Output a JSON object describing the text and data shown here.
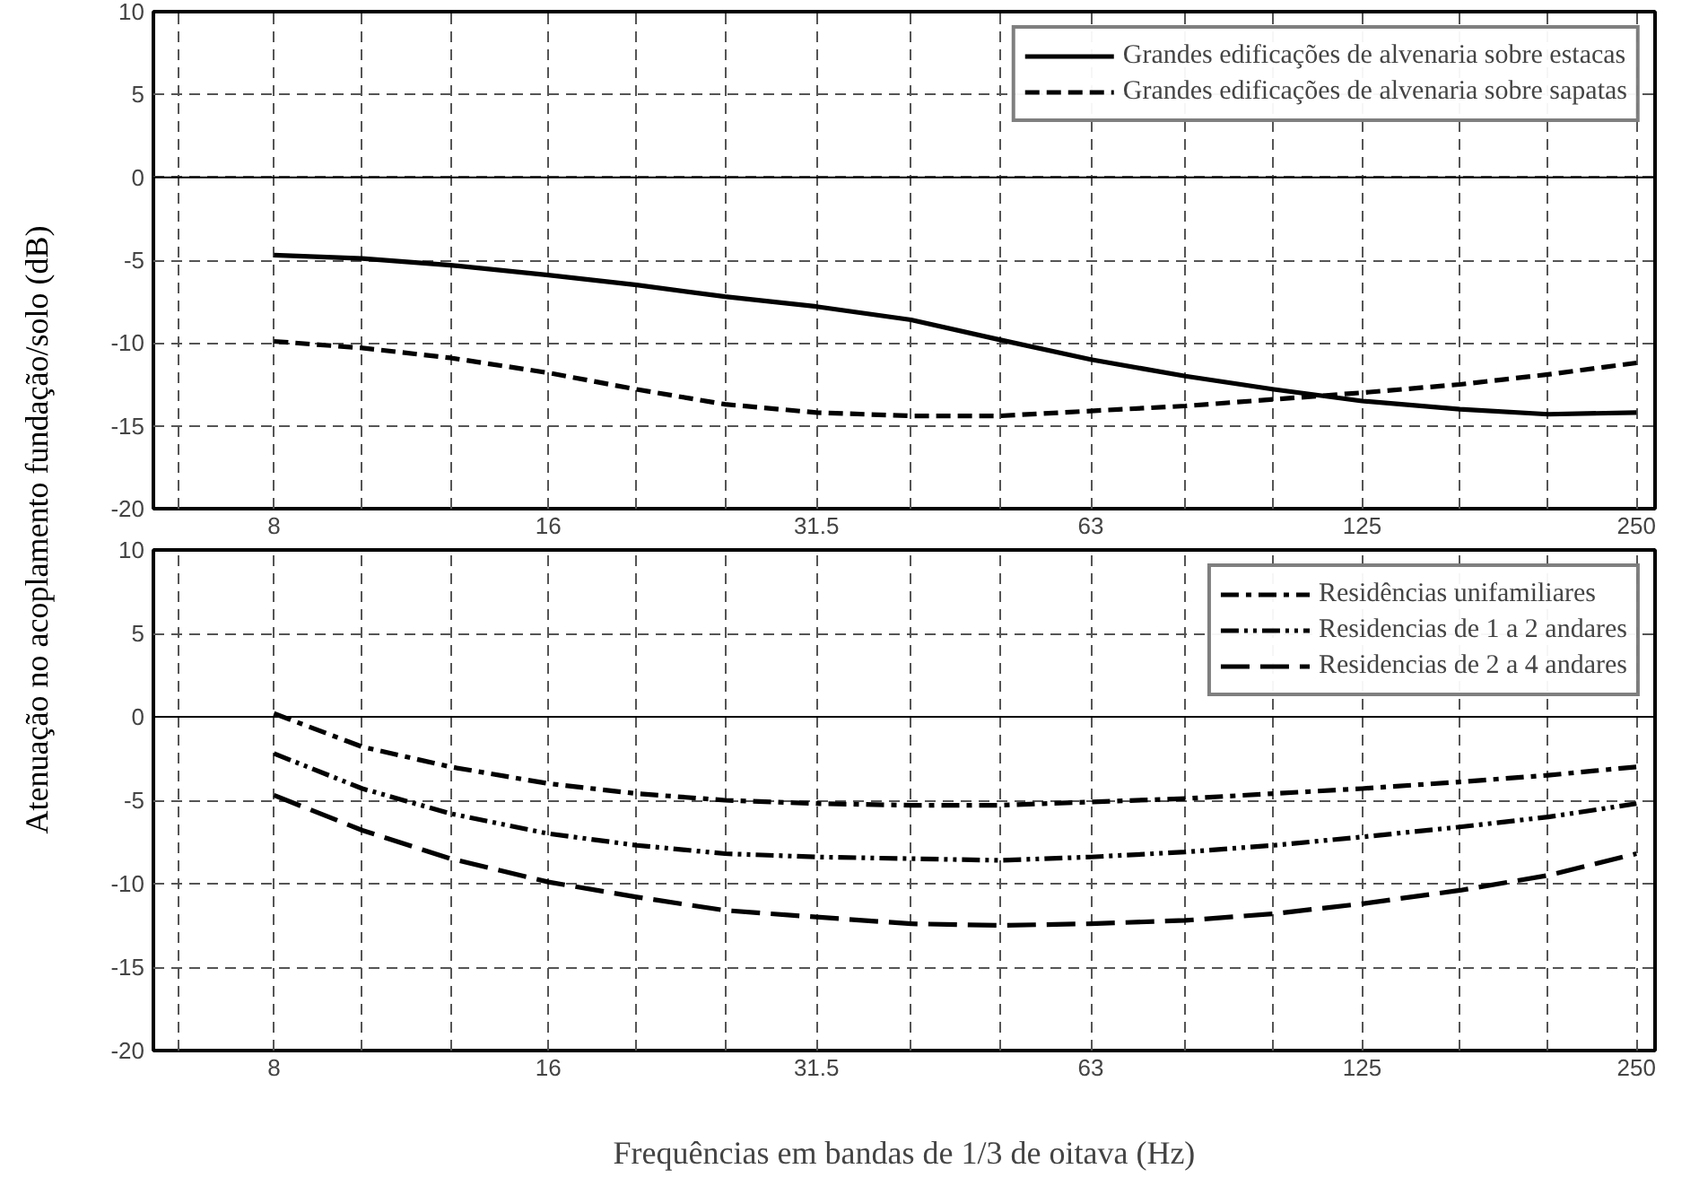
{
  "chart_data": [
    {
      "type": "line",
      "ylabel": "Atenuação no acoplamento fundação/solo (dB)",
      "log": "x",
      "grid": true,
      "legend": "top right",
      "x": [
        8,
        10,
        12.5,
        16,
        20,
        25,
        31.5,
        40,
        50,
        63,
        80,
        100,
        125,
        160,
        200,
        250
      ],
      "xlim": [
        5.9,
        262
      ],
      "xticks": [
        {
          "value": 6.3,
          "label": null
        },
        8,
        {
          "value": 10,
          "label": null
        },
        {
          "value": 12.5,
          "label": null
        },
        16,
        {
          "value": 20,
          "label": null
        },
        {
          "value": 25,
          "label": null
        },
        31.5,
        {
          "value": 40,
          "label": null
        },
        {
          "value": 50,
          "label": null
        },
        63,
        {
          "value": 80,
          "label": null
        },
        {
          "value": 100,
          "label": null
        },
        125,
        {
          "value": 160,
          "label": null
        },
        {
          "value": 200,
          "label": null
        },
        250
      ],
      "ylim": [
        -20,
        10
      ],
      "yticks": [
        -20,
        -15,
        -10,
        -5,
        0,
        5,
        10
      ],
      "ref_lines": [
        {
          "axis": "y",
          "value": 0,
          "label": null,
          "color": "#000000",
          "line_style": "solid"
        }
      ],
      "series": [
        {
          "name": "Grandes edificações de alvenaria sobre estacas",
          "color": "#000000",
          "line_style": "solid",
          "values": [
            -4.7,
            -4.9,
            -5.3,
            -5.9,
            -6.5,
            -7.2,
            -7.8,
            -8.6,
            -9.8,
            -11.0,
            -12.0,
            -12.8,
            -13.5,
            -14.0,
            -14.3,
            -14.2
          ]
        },
        {
          "name": "Grandes edificações de alvenaria sobre sapatas",
          "color": "#000000",
          "line_style": "dashed",
          "values": [
            -9.9,
            -10.3,
            -10.9,
            -11.8,
            -12.8,
            -13.7,
            -14.2,
            -14.4,
            -14.4,
            -14.1,
            -13.8,
            -13.4,
            -13.0,
            -12.5,
            -11.9,
            -11.2
          ]
        }
      ]
    },
    {
      "type": "line",
      "xlabel": "Frequências em bandas de 1/3 de oitava (Hz)",
      "log": "x",
      "grid": true,
      "legend": "top right",
      "x": [
        8,
        10,
        12.5,
        16,
        20,
        25,
        31.5,
        40,
        50,
        63,
        80,
        100,
        125,
        160,
        200,
        250
      ],
      "xlim": [
        5.9,
        262
      ],
      "xticks": [
        {
          "value": 6.3,
          "label": null
        },
        8,
        {
          "value": 10,
          "label": null
        },
        {
          "value": 12.5,
          "label": null
        },
        16,
        {
          "value": 20,
          "label": null
        },
        {
          "value": 25,
          "label": null
        },
        31.5,
        {
          "value": 40,
          "label": null
        },
        {
          "value": 50,
          "label": null
        },
        63,
        {
          "value": 80,
          "label": null
        },
        {
          "value": 100,
          "label": null
        },
        125,
        {
          "value": 160,
          "label": null
        },
        {
          "value": 200,
          "label": null
        },
        250
      ],
      "ylim": [
        -20,
        10
      ],
      "yticks": [
        -20,
        -15,
        -10,
        -5,
        0,
        5,
        10
      ],
      "ref_lines": [
        {
          "axis": "y",
          "value": 0,
          "label": null,
          "color": "#000000",
          "line_style": "solid"
        }
      ],
      "series": [
        {
          "name": "Residências unifamiliares",
          "color": "#000000",
          "line_style": "dashdot",
          "values": [
            0.2,
            -1.8,
            -3.0,
            -4.0,
            -4.6,
            -5.0,
            -5.2,
            -5.3,
            -5.3,
            -5.1,
            -4.9,
            -4.6,
            -4.3,
            -3.9,
            -3.5,
            -3.0
          ]
        },
        {
          "name": "Residencias de 1 a 2 andares",
          "color": "#000000",
          "line_style": "dashdotdot",
          "values": [
            -2.2,
            -4.3,
            -5.8,
            -7.0,
            -7.7,
            -8.2,
            -8.4,
            -8.5,
            -8.6,
            -8.4,
            -8.1,
            -7.7,
            -7.2,
            -6.6,
            -6.0,
            -5.2
          ]
        },
        {
          "name": "Residencias de 2 a 4 andares",
          "color": "#000000",
          "line_style": "longdash",
          "values": [
            -4.7,
            -6.8,
            -8.5,
            -9.9,
            -10.8,
            -11.6,
            -12.0,
            -12.4,
            -12.5,
            -12.4,
            -12.2,
            -11.8,
            -11.2,
            -10.4,
            -9.5,
            -8.2
          ]
        }
      ]
    }
  ]
}
